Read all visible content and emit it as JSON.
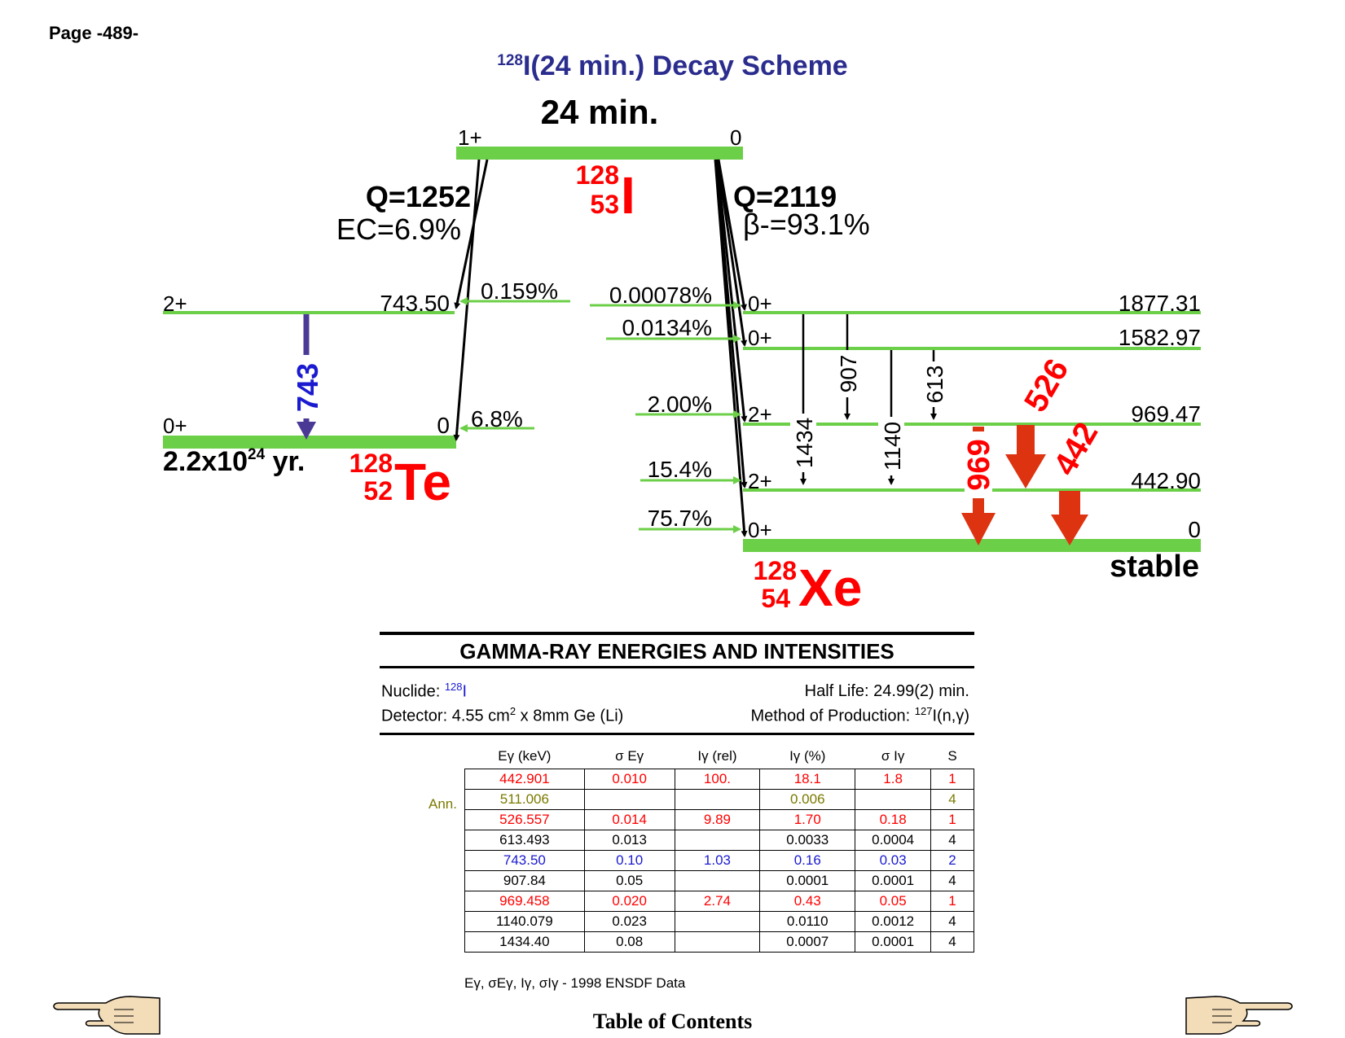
{
  "page_label": "Page -489-",
  "title": {
    "mass": "128",
    "text": "I(24 min.) Decay Scheme"
  },
  "parent": {
    "half_life": "24 min.",
    "spin_left": "1+",
    "spin_right": "0",
    "symbol": "I",
    "mass": "128",
    "z": "53",
    "color": "#ff0000"
  },
  "ec_branch": {
    "q": "Q=1252",
    "label": "EC=6.9%"
  },
  "beta_branch": {
    "q": "Q=2119",
    "label": "β-=93.1%"
  },
  "te": {
    "symbol": "Te",
    "mass": "128",
    "z": "52",
    "half_life_base": "2.2x10",
    "half_life_exp": "24",
    "half_life_unit": " yr.",
    "levels": [
      {
        "spin": "2+",
        "energy": "743.50",
        "feeding": "0.159%"
      },
      {
        "spin": "0+",
        "energy": "0",
        "feeding": "6.8%"
      }
    ],
    "gammas": [
      {
        "label": "743",
        "color": "#1a1ad0"
      }
    ]
  },
  "xe": {
    "symbol": "Xe",
    "mass": "128",
    "z": "54",
    "ground_note": "stable",
    "levels": [
      {
        "spin": "0+",
        "energy": "1877.31",
        "feeding": "0.00078%"
      },
      {
        "spin": "0+",
        "energy": "1582.97",
        "feeding": "0.0134%"
      },
      {
        "spin": "2+",
        "energy": "969.47",
        "feeding": "2.00%"
      },
      {
        "spin": "2+",
        "energy": "442.90",
        "feeding": "15.4%"
      },
      {
        "spin": "0+",
        "energy": "0",
        "feeding": "75.7%"
      }
    ],
    "gammas_black": [
      "1434",
      "907",
      "1140",
      "613"
    ],
    "gammas_red": [
      "969",
      "526",
      "442"
    ]
  },
  "colors": {
    "level": "#6ccf48",
    "red": "#ff0000",
    "arrow_red": "#dd3311",
    "te_arrow": "#4a3a96",
    "blue": "#1a1ad0",
    "olive": "#7a7a00"
  },
  "gamma_table": {
    "heading": "GAMMA-RAY ENERGIES AND INTENSITIES",
    "nuclide_label": "Nuclide: ",
    "nuclide_mass": "128",
    "nuclide_symbol": "I",
    "half_life": "Half Life: 24.99(2) min.",
    "detector_pre": "Detector: 4.55 cm",
    "detector_sup": "2",
    "detector_post": " x 8mm Ge (Li)",
    "production_pre": "Method of Production: ",
    "production_sup": "127",
    "production_post": "I(n,γ)",
    "columns": [
      "Eγ (keV)",
      "σ Eγ",
      "Iγ (rel)",
      "Iγ (%)",
      "σ Iγ",
      "S"
    ],
    "ann_label": "Ann.",
    "rows": [
      {
        "cells": [
          "442.901",
          "0.010",
          "100.",
          "18.1",
          "1.8",
          "1"
        ],
        "color": "#ff0000"
      },
      {
        "cells": [
          "511.006",
          "",
          "",
          "0.006",
          "",
          "4"
        ],
        "color": "#7a7a00",
        "ann": true
      },
      {
        "cells": [
          "526.557",
          "0.014",
          "9.89",
          "1.70",
          "0.18",
          "1"
        ],
        "color": "#ff0000"
      },
      {
        "cells": [
          "613.493",
          "0.013",
          "",
          "0.0033",
          "0.0004",
          "4"
        ],
        "color": "#000000"
      },
      {
        "cells": [
          "743.50",
          "0.10",
          "1.03",
          "0.16",
          "0.03",
          "2"
        ],
        "color": "#1a1ad0"
      },
      {
        "cells": [
          "907.84",
          "0.05",
          "",
          "0.0001",
          "0.0001",
          "4"
        ],
        "color": "#000000"
      },
      {
        "cells": [
          "969.458",
          "0.020",
          "2.74",
          "0.43",
          "0.05",
          "1"
        ],
        "color": "#ff0000"
      },
      {
        "cells": [
          "1140.079",
          "0.023",
          "",
          "0.0110",
          "0.0012",
          "4"
        ],
        "color": "#000000"
      },
      {
        "cells": [
          "1434.40",
          "0.08",
          "",
          "0.0007",
          "0.0001",
          "4"
        ],
        "color": "#000000"
      }
    ],
    "footnote": "Eγ, σEγ, Iγ, σIγ - 1998 ENSDF Data"
  },
  "toc_link": "Table of Contents"
}
